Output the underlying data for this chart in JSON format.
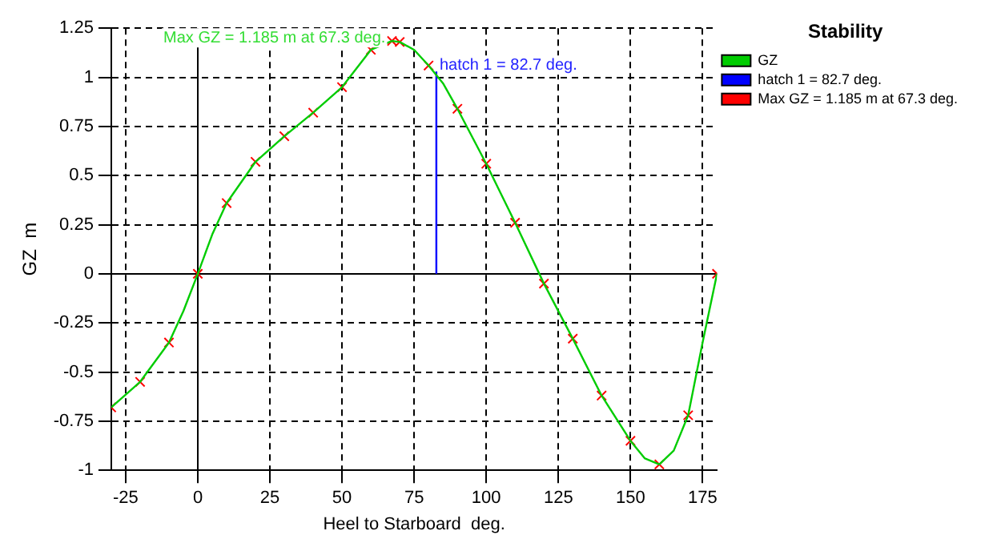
{
  "chart_data": {
    "type": "line",
    "xlabel": "Heel to Starboard  deg.",
    "ylabel": "GZ  m",
    "legend_title": "Stability",
    "xlim": [
      -30,
      180
    ],
    "xticks": [
      -25,
      0,
      25,
      50,
      75,
      100,
      125,
      150,
      175
    ],
    "ylim": [
      -1,
      1.25
    ],
    "yticks": [
      -1,
      -0.75,
      -0.5,
      -0.25,
      0,
      0.25,
      0.5,
      0.75,
      1,
      1.25
    ],
    "grid": true,
    "legend": "top right",
    "marker": "none",
    "line_style": "solid",
    "series": [
      {
        "name": "GZ",
        "color": "#00cc00",
        "x": [
          -30,
          -20,
          -10,
          -5,
          0,
          5,
          10,
          20,
          30,
          40,
          50,
          60,
          67.3,
          70,
          75,
          80,
          85,
          90,
          100,
          110,
          120,
          130,
          140,
          150,
          155,
          160,
          165,
          170,
          175,
          180
        ],
        "values": [
          -0.68,
          -0.55,
          -0.35,
          -0.19,
          0,
          0.2,
          0.36,
          0.57,
          0.7,
          0.82,
          0.95,
          1.14,
          1.185,
          1.18,
          1.14,
          1.06,
          0.97,
          0.84,
          0.56,
          0.26,
          -0.05,
          -0.33,
          -0.62,
          -0.85,
          -0.94,
          -0.97,
          -0.9,
          -0.72,
          -0.35,
          0
        ]
      },
      {
        "name": "hatch 1 = 82.7 deg.",
        "color": "#0000ff",
        "x": [
          82.7,
          82.7
        ],
        "values": [
          0,
          1.03
        ]
      },
      {
        "name": "Max GZ = 1.185 m at 67.3 deg.",
        "color": "#ff0000",
        "type": "scatter",
        "marker": "cross",
        "x": [
          67.3
        ],
        "values": [
          1.185
        ]
      },
      {
        "color": "#ff0000",
        "type": "scatter",
        "marker": "cross",
        "x": [
          -30,
          -20,
          -10,
          0,
          10,
          20,
          30,
          40,
          50,
          60,
          70,
          80,
          90,
          100,
          110,
          120,
          130,
          140,
          150,
          160,
          170,
          180
        ],
        "values": [
          -0.68,
          -0.55,
          -0.35,
          0,
          0.36,
          0.57,
          0.7,
          0.82,
          0.95,
          1.14,
          1.18,
          1.06,
          0.84,
          0.56,
          0.26,
          -0.05,
          -0.33,
          -0.62,
          -0.85,
          -0.97,
          -0.72,
          0
        ]
      }
    ],
    "annotations": [
      {
        "text": "Max GZ = 1.185 m at 67.3 deg.",
        "x": 67.3,
        "y": 1.185
      },
      {
        "text": "hatch 1 = 82.7 deg.",
        "x": 82.7,
        "y": 1.03
      }
    ]
  }
}
